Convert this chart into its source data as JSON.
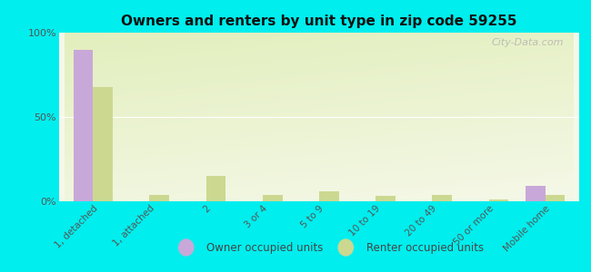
{
  "title": "Owners and renters by unit type in zip code 59255",
  "categories": [
    "1, detached",
    "1, attached",
    "2",
    "3 or 4",
    "5 to 9",
    "10 to 19",
    "20 to 49",
    "50 or more",
    "Mobile home"
  ],
  "owner_values": [
    90,
    0,
    0,
    0,
    0,
    0,
    0,
    0,
    9
  ],
  "renter_values": [
    68,
    4,
    15,
    4,
    6,
    3,
    4,
    1,
    4
  ],
  "owner_color": "#c8a8d8",
  "renter_color": "#ccd890",
  "background_color": "#00eeee",
  "ylabel": "",
  "ylim": [
    0,
    100
  ],
  "yticks": [
    0,
    50,
    100
  ],
  "ytick_labels": [
    "0%",
    "50%",
    "100%"
  ],
  "bar_width": 0.35,
  "watermark": "City-Data.com",
  "legend_owner": "Owner occupied units",
  "legend_renter": "Renter occupied units",
  "plot_bg": "#e8f0c0"
}
